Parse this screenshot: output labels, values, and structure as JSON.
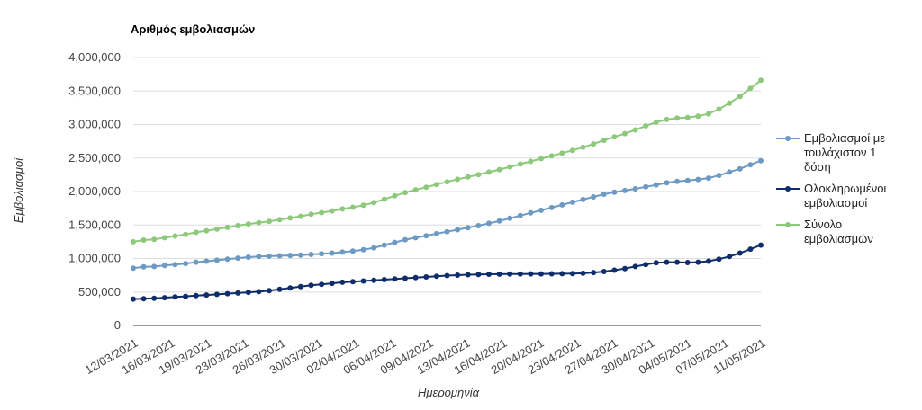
{
  "chart_data": {
    "type": "line",
    "title": "Αριθμός εμβολιασμών",
    "xlabel": "Ημερομηνία",
    "ylabel": "Εμβολιασμοί",
    "ylim": [
      0,
      4000000
    ],
    "y_ticks": [
      "0",
      "500,000",
      "1,000,000",
      "1,500,000",
      "2,000,000",
      "2,500,000",
      "3,000,000",
      "3,500,000",
      "4,000,000"
    ],
    "x_tick_labels": [
      "12/03/2021",
      "16/03/2021",
      "19/03/2021",
      "23/03/2021",
      "26/03/2021",
      "30/03/2021",
      "02/04/2021",
      "06/04/2021",
      "09/04/2021",
      "13/04/2021",
      "16/04/2021",
      "20/04/2021",
      "23/04/2021",
      "27/04/2021",
      "30/04/2021",
      "04/05/2021",
      "07/05/2021",
      "11/05/2021"
    ],
    "x": [
      "12/03/2021",
      "13/03/2021",
      "14/03/2021",
      "15/03/2021",
      "16/03/2021",
      "17/03/2021",
      "18/03/2021",
      "19/03/2021",
      "20/03/2021",
      "21/03/2021",
      "22/03/2021",
      "23/03/2021",
      "24/03/2021",
      "25/03/2021",
      "26/03/2021",
      "27/03/2021",
      "28/03/2021",
      "29/03/2021",
      "30/03/2021",
      "31/03/2021",
      "01/04/2021",
      "02/04/2021",
      "03/04/2021",
      "04/04/2021",
      "05/04/2021",
      "06/04/2021",
      "07/04/2021",
      "08/04/2021",
      "09/04/2021",
      "10/04/2021",
      "11/04/2021",
      "12/04/2021",
      "13/04/2021",
      "14/04/2021",
      "15/04/2021",
      "16/04/2021",
      "17/04/2021",
      "18/04/2021",
      "19/04/2021",
      "20/04/2021",
      "21/04/2021",
      "22/04/2021",
      "23/04/2021",
      "24/04/2021",
      "25/04/2021",
      "26/04/2021",
      "27/04/2021",
      "28/04/2021",
      "29/04/2021",
      "30/04/2021",
      "01/05/2021",
      "02/05/2021",
      "03/05/2021",
      "04/05/2021",
      "05/05/2021",
      "06/05/2021",
      "07/05/2021",
      "08/05/2021",
      "09/05/2021",
      "10/05/2021",
      "11/05/2021"
    ],
    "legend_position": "right",
    "grid": true,
    "series": [
      {
        "name": "Εμβολιασμοί με τουλάχιστον 1 δόση",
        "color": "#6d9ac4",
        "values": [
          855000,
          875000,
          880000,
          895000,
          910000,
          925000,
          945000,
          960000,
          975000,
          990000,
          1005000,
          1020000,
          1030000,
          1035000,
          1040000,
          1045000,
          1050000,
          1060000,
          1070000,
          1080000,
          1095000,
          1110000,
          1130000,
          1160000,
          1200000,
          1240000,
          1280000,
          1310000,
          1340000,
          1370000,
          1400000,
          1430000,
          1460000,
          1490000,
          1525000,
          1560000,
          1600000,
          1640000,
          1680000,
          1720000,
          1760000,
          1800000,
          1840000,
          1880000,
          1920000,
          1960000,
          1990000,
          2015000,
          2040000,
          2070000,
          2100000,
          2130000,
          2150000,
          2165000,
          2180000,
          2200000,
          2240000,
          2290000,
          2340000,
          2400000,
          2460000
        ]
      },
      {
        "name": "Ολοκληρωμένοι εμβολιασμοί",
        "color": "#0f2d6b",
        "values": [
          395000,
          400000,
          405000,
          415000,
          425000,
          435000,
          445000,
          455000,
          465000,
          475000,
          485000,
          495000,
          505000,
          520000,
          540000,
          560000,
          580000,
          600000,
          615000,
          630000,
          645000,
          655000,
          665000,
          675000,
          685000,
          695000,
          705000,
          715000,
          725000,
          735000,
          745000,
          752000,
          758000,
          762000,
          765000,
          767000,
          768000,
          769000,
          770000,
          771000,
          772000,
          773000,
          775000,
          780000,
          790000,
          805000,
          825000,
          850000,
          880000,
          910000,
          935000,
          945000,
          945000,
          940000,
          945000,
          960000,
          990000,
          1030000,
          1080000,
          1140000,
          1200000
        ]
      },
      {
        "name": "Σύνολο εμβολιασμών",
        "color": "#8dc97a",
        "values": [
          1250000,
          1275000,
          1285000,
          1310000,
          1335000,
          1360000,
          1390000,
          1415000,
          1440000,
          1465000,
          1490000,
          1515000,
          1535000,
          1555000,
          1580000,
          1605000,
          1630000,
          1660000,
          1685000,
          1710000,
          1740000,
          1765000,
          1795000,
          1835000,
          1885000,
          1935000,
          1985000,
          2025000,
          2065000,
          2105000,
          2145000,
          2182000,
          2218000,
          2252000,
          2290000,
          2327000,
          2368000,
          2409000,
          2450000,
          2491000,
          2532000,
          2573000,
          2615000,
          2660000,
          2710000,
          2765000,
          2815000,
          2865000,
          2920000,
          2980000,
          3035000,
          3075000,
          3095000,
          3105000,
          3125000,
          3160000,
          3230000,
          3320000,
          3420000,
          3540000,
          3660000
        ]
      }
    ]
  }
}
